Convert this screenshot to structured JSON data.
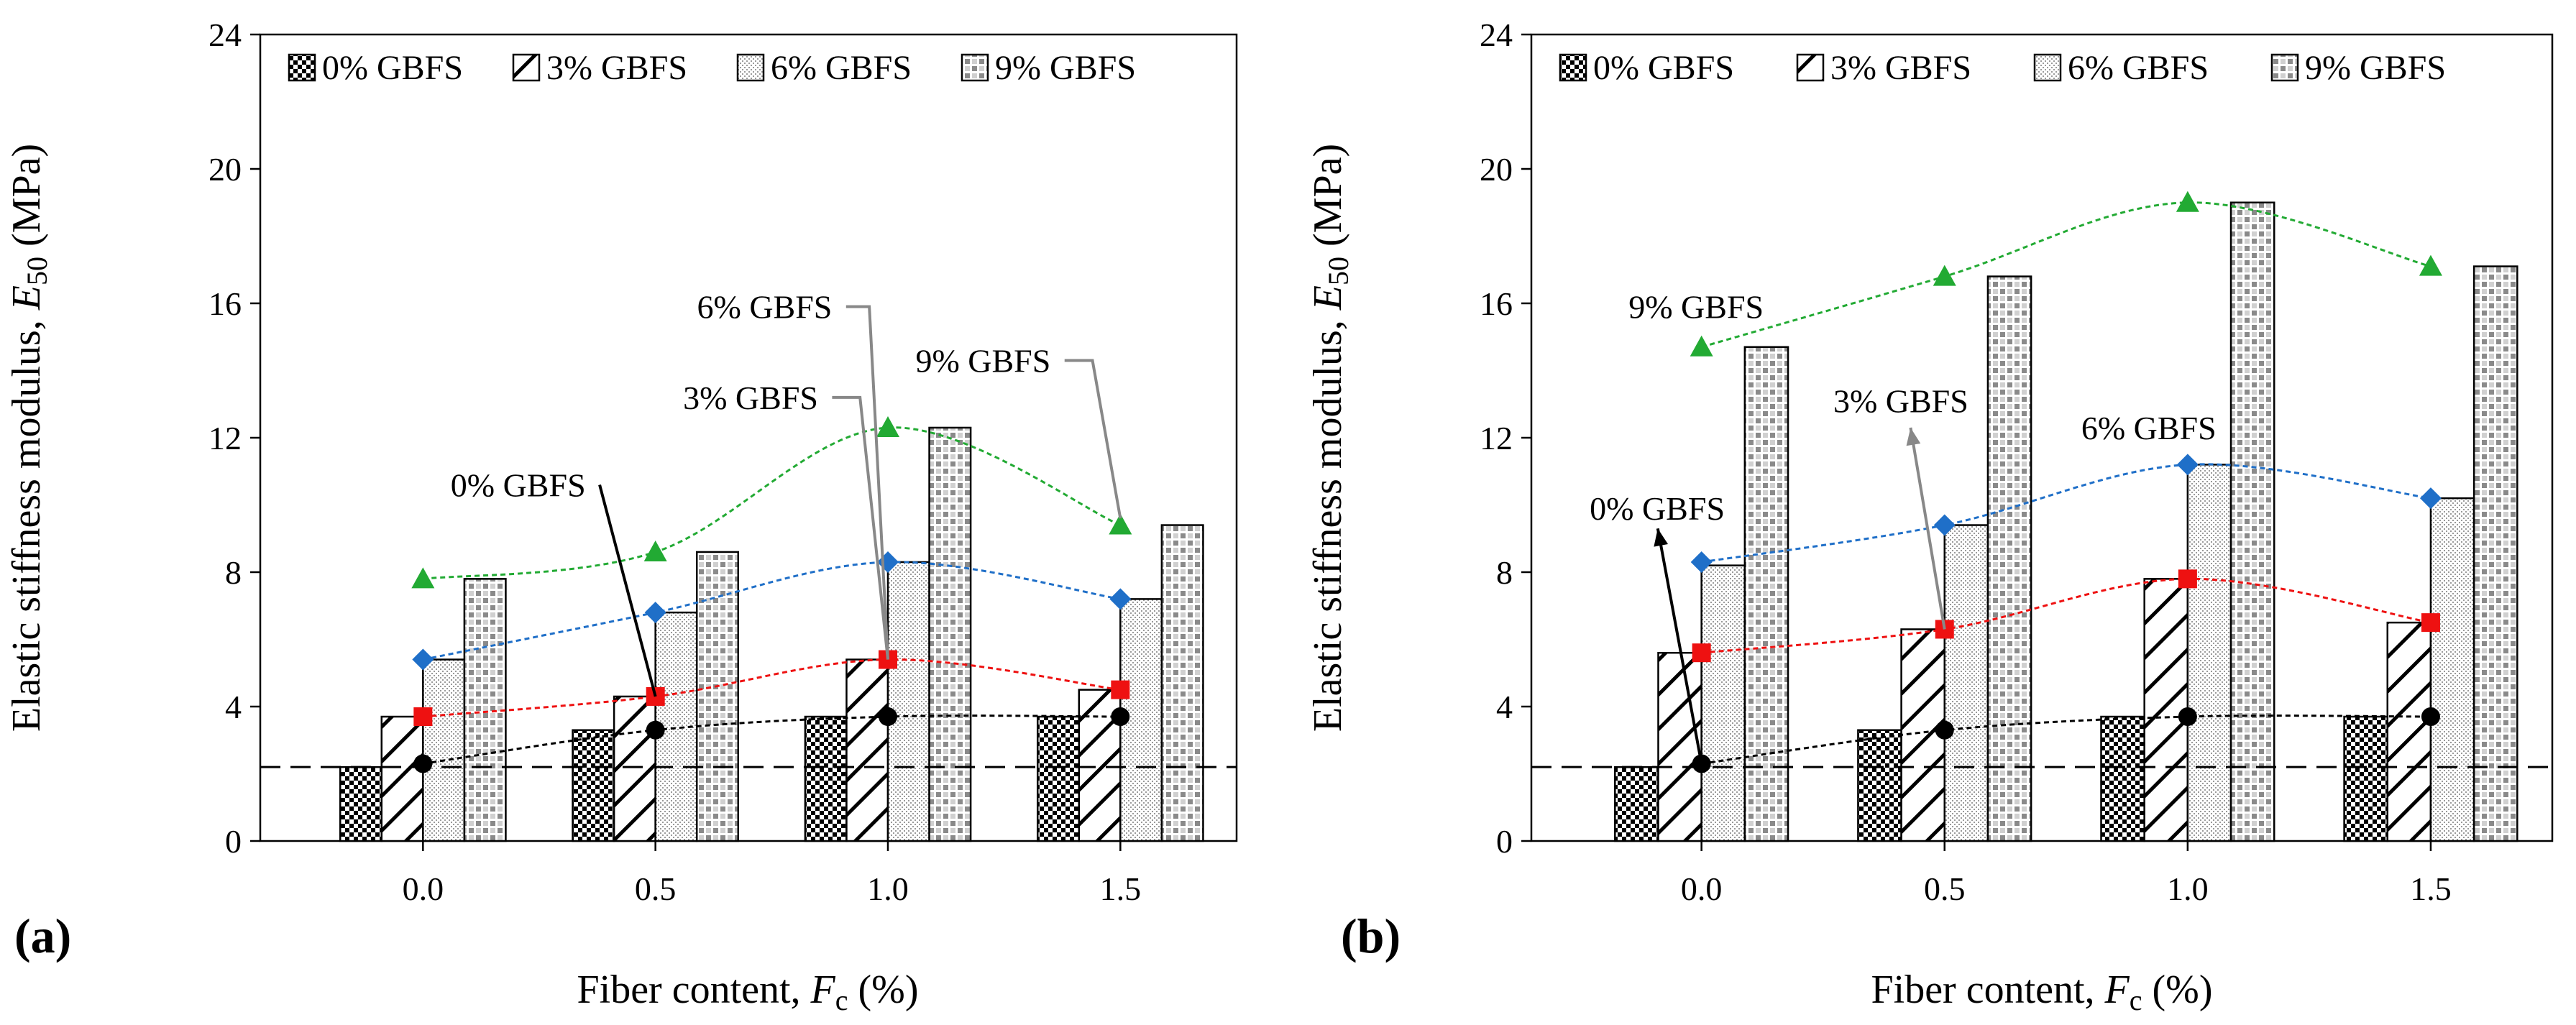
{
  "chart_data": [
    {
      "panel_label": "(a)",
      "type": "bar",
      "xlabel_prefix": "Fiber content, ",
      "xlabel_var": "F",
      "xlabel_sub": "c",
      "xlabel_suffix": " (%)",
      "ylabel_prefix": "Elastic stiffness modulus, ",
      "ylabel_var": "E",
      "ylabel_sub": "50",
      "ylabel_suffix": " (MPa)",
      "ylim": [
        0,
        24
      ],
      "yticks": [
        "0",
        "4",
        "8",
        "12",
        "16",
        "20",
        "24"
      ],
      "categories": [
        "0.0",
        "0.5",
        "1.0",
        "1.5"
      ],
      "category_values": [
        0.0,
        0.5,
        1.0,
        1.5
      ],
      "series": [
        {
          "name": "0% GBFS",
          "values": [
            2.2,
            3.3,
            3.7,
            3.7
          ],
          "line_values": [
            2.3,
            3.3,
            3.7,
            3.7
          ],
          "marker": "circle",
          "color": "#000000"
        },
        {
          "name": "3% GBFS",
          "values": [
            3.7,
            4.3,
            5.4,
            4.5
          ],
          "line_values": [
            3.7,
            4.3,
            5.4,
            4.5
          ],
          "marker": "square",
          "color": "#ee1111"
        },
        {
          "name": "6% GBFS",
          "values": [
            5.4,
            6.8,
            8.3,
            7.2
          ],
          "line_values": [
            5.4,
            6.8,
            8.3,
            7.2
          ],
          "marker": "diamond",
          "color": "#1f6fc8"
        },
        {
          "name": "9% GBFS",
          "values": [
            7.8,
            8.6,
            12.3,
            9.4
          ],
          "line_values": [
            7.8,
            8.6,
            12.3,
            9.4
          ],
          "marker": "triangle",
          "color": "#22aa33"
        }
      ],
      "reference_line": 2.2,
      "annotations": [
        {
          "text": "0% GBFS",
          "label_x": 0.35,
          "label_y": 10.6,
          "anchor": "end",
          "arrow": [
            [
              0.38,
              10.6
            ],
            [
              0.5,
              4.3
            ]
          ],
          "arrow_color": "#000000",
          "arrowhead": false
        },
        {
          "text": "3% GBFS",
          "label_x": 0.85,
          "label_y": 13.2,
          "anchor": "end",
          "arrow": [
            [
              0.88,
              13.2
            ],
            [
              0.94,
              13.2
            ],
            [
              1.0,
              5.4
            ]
          ],
          "arrow_color": "#888888",
          "arrowhead": false
        },
        {
          "text": "6% GBFS",
          "label_x": 0.88,
          "label_y": 15.9,
          "anchor": "end",
          "arrow": [
            [
              0.91,
              15.9
            ],
            [
              0.96,
              15.9
            ],
            [
              1.0,
              5.4
            ]
          ],
          "arrow_color": "#888888",
          "arrowhead": false
        },
        {
          "text": "9% GBFS",
          "label_x": 1.35,
          "label_y": 14.3,
          "anchor": "end",
          "arrow": [
            [
              1.38,
              14.3
            ],
            [
              1.44,
              14.3
            ],
            [
              1.5,
              9.6
            ]
          ],
          "arrow_color": "#888888",
          "arrowhead": false
        }
      ]
    },
    {
      "panel_label": "(b)",
      "type": "bar",
      "xlabel_prefix": "Fiber content, ",
      "xlabel_var": "F",
      "xlabel_sub": "c",
      "xlabel_suffix": " (%)",
      "ylabel_prefix": "Elastic stiffness modulus, ",
      "ylabel_var": "E",
      "ylabel_sub": "50",
      "ylabel_suffix": " (MPa)",
      "ylim": [
        0,
        24
      ],
      "yticks": [
        "0",
        "4",
        "8",
        "12",
        "16",
        "20",
        "24"
      ],
      "categories": [
        "0.0",
        "0.5",
        "1.0",
        "1.5"
      ],
      "category_values": [
        0.0,
        0.5,
        1.0,
        1.5
      ],
      "series": [
        {
          "name": "0% GBFS",
          "values": [
            2.2,
            3.3,
            3.7,
            3.7
          ],
          "line_values": [
            2.3,
            3.3,
            3.7,
            3.7
          ],
          "marker": "circle",
          "color": "#000000"
        },
        {
          "name": "3% GBFS",
          "values": [
            5.6,
            6.3,
            7.8,
            6.5
          ],
          "line_values": [
            5.6,
            6.3,
            7.8,
            6.5
          ],
          "marker": "square",
          "color": "#ee1111"
        },
        {
          "name": "6% GBFS",
          "values": [
            8.2,
            9.4,
            11.2,
            10.2
          ],
          "line_values": [
            8.3,
            9.4,
            11.2,
            10.2
          ],
          "marker": "diamond",
          "color": "#1f6fc8"
        },
        {
          "name": "9% GBFS",
          "values": [
            14.7,
            16.8,
            19.0,
            17.1
          ],
          "line_values": [
            14.7,
            16.8,
            19.0,
            17.1
          ],
          "marker": "triangle",
          "color": "#22aa33"
        }
      ],
      "reference_line": 2.2,
      "annotations": [
        {
          "text": "9% GBFS",
          "label_x": -0.15,
          "label_y": 15.9,
          "anchor": "start",
          "arrow": [],
          "arrow_color": "#000000",
          "arrowhead": false
        },
        {
          "text": "3% GBFS",
          "label_x": 0.41,
          "label_y": 13.1,
          "anchor": "middle",
          "arrow": [
            [
              0.5,
              6.3
            ],
            [
              0.43,
              12.3
            ]
          ],
          "arrow_color": "#888888",
          "arrowhead": true
        },
        {
          "text": "6% GBFS",
          "label_x": 0.92,
          "label_y": 12.3,
          "anchor": "middle",
          "arrow": [],
          "arrow_color": "#000000",
          "arrowhead": false
        },
        {
          "text": "0% GBFS",
          "label_x": -0.23,
          "label_y": 9.9,
          "anchor": "start",
          "arrow": [
            [
              0.0,
              2.3
            ],
            [
              -0.09,
              9.3
            ]
          ],
          "arrow_color": "#000000",
          "arrowhead": true
        }
      ]
    }
  ]
}
